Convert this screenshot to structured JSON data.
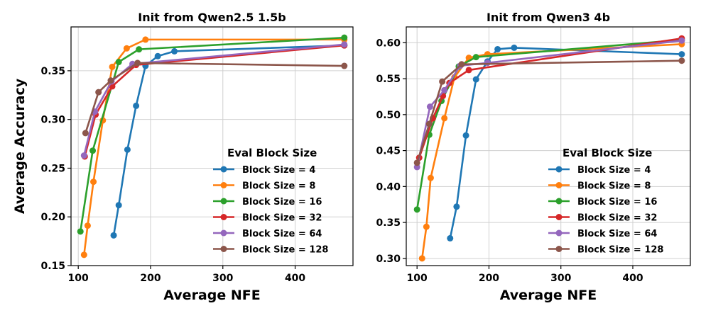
{
  "shared": {
    "xlabel": "Average NFE",
    "ylabel": "Average Accuracy",
    "legend_title": "Eval Block Size",
    "series_colors": [
      "#1f77b4",
      "#ff7f0e",
      "#2ca02c",
      "#d62728",
      "#9467bd",
      "#8c564b"
    ]
  },
  "chart_data": [
    {
      "type": "line",
      "title": "Init from Qwen2.5 1.5b",
      "xlabel": "Average NFE",
      "ylabel": "Average Accuracy",
      "xlim": [
        90,
        480
      ],
      "ylim": [
        0.15,
        0.395
      ],
      "xticks": [
        100,
        200,
        300,
        400
      ],
      "yticks": [
        0.15,
        0.2,
        0.25,
        0.3,
        0.35
      ],
      "ytick_labels": [
        "0.15",
        "0.20",
        "0.25",
        "0.30",
        "0.35"
      ],
      "grid": true,
      "legend_title": "Eval Block Size",
      "legend_position": "lower-right",
      "series": [
        {
          "name": "Block Size = 4",
          "color": "#1f77b4",
          "x": [
            149,
            156,
            168,
            180,
            193,
            210,
            233,
            468
          ],
          "y": [
            0.181,
            0.212,
            0.269,
            0.314,
            0.355,
            0.365,
            0.37,
            0.376
          ]
        },
        {
          "name": "Block Size = 8",
          "color": "#ff7f0e",
          "x": [
            108,
            113,
            121,
            134,
            147,
            167,
            193,
            468
          ],
          "y": [
            0.161,
            0.191,
            0.236,
            0.299,
            0.354,
            0.373,
            0.382,
            0.382
          ]
        },
        {
          "name": "Block Size = 16",
          "color": "#2ca02c",
          "x": [
            103,
            120,
            156,
            184,
            468
          ],
          "y": [
            0.185,
            0.268,
            0.359,
            0.372,
            0.384
          ]
        },
        {
          "name": "Block Size = 32",
          "color": "#d62728",
          "x": [
            109,
            124,
            147,
            180,
            468
          ],
          "y": [
            0.262,
            0.305,
            0.334,
            0.356,
            0.376
          ]
        },
        {
          "name": "Block Size = 64",
          "color": "#9467bd",
          "x": [
            108,
            123,
            146,
            175,
            468
          ],
          "y": [
            0.263,
            0.308,
            0.339,
            0.357,
            0.377
          ]
        },
        {
          "name": "Block Size = 128",
          "color": "#8c564b",
          "x": [
            110,
            128,
            145,
            182,
            468
          ],
          "y": [
            0.286,
            0.328,
            0.34,
            0.358,
            0.355
          ]
        }
      ]
    },
    {
      "type": "line",
      "title": "Init from Qwen3 4b",
      "xlabel": "Average NFE",
      "ylabel": "",
      "xlim": [
        85,
        480
      ],
      "ylim": [
        0.29,
        0.622
      ],
      "xticks": [
        100,
        200,
        300,
        400
      ],
      "yticks": [
        0.3,
        0.35,
        0.4,
        0.45,
        0.5,
        0.55,
        0.6
      ],
      "ytick_labels": [
        "0.30",
        "0.35",
        "0.40",
        "0.45",
        "0.50",
        "0.55",
        "0.60"
      ],
      "grid": true,
      "legend_title": "Eval Block Size",
      "legend_position": "lower-right",
      "series": [
        {
          "name": "Block Size = 4",
          "color": "#1f77b4",
          "x": [
            146,
            155,
            168,
            182,
            198,
            212,
            235,
            468
          ],
          "y": [
            0.328,
            0.372,
            0.471,
            0.549,
            0.574,
            0.591,
            0.593,
            0.584
          ]
        },
        {
          "name": "Block Size = 8",
          "color": "#ff7f0e",
          "x": [
            107,
            113,
            119,
            138,
            152,
            172,
            198,
            468
          ],
          "y": [
            0.3,
            0.344,
            0.412,
            0.495,
            0.552,
            0.579,
            0.584,
            0.598
          ]
        },
        {
          "name": "Block Size = 16",
          "color": "#2ca02c",
          "x": [
            100,
            117,
            134,
            158,
            182,
            468
          ],
          "y": [
            0.368,
            0.472,
            0.519,
            0.567,
            0.58,
            0.604
          ]
        },
        {
          "name": "Block Size = 32",
          "color": "#d62728",
          "x": [
            103,
            122,
            136,
            145,
            172,
            468
          ],
          "y": [
            0.44,
            0.495,
            0.526,
            0.544,
            0.562,
            0.606
          ]
        },
        {
          "name": "Block Size = 64",
          "color": "#9467bd",
          "x": [
            100,
            118,
            138,
            160,
            198,
            468
          ],
          "y": [
            0.427,
            0.511,
            0.534,
            0.568,
            0.572,
            0.603
          ]
        },
        {
          "name": "Block Size = 128",
          "color": "#8c564b",
          "x": [
            100,
            117,
            135,
            162,
            468
          ],
          "y": [
            0.433,
            0.487,
            0.546,
            0.57,
            0.575
          ]
        }
      ]
    }
  ]
}
